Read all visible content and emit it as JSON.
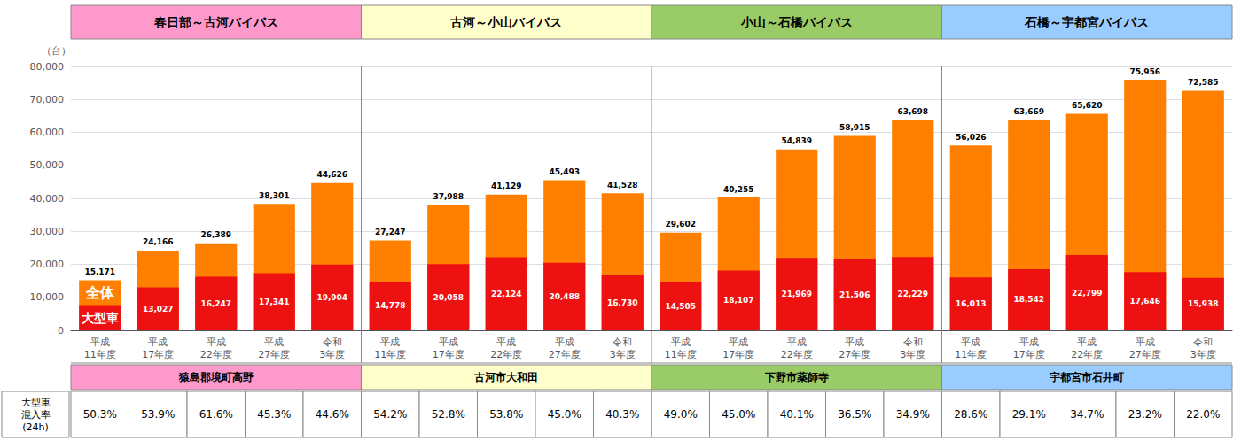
{
  "chart_data": {
    "type": "bar",
    "ylabel": "（台）",
    "categories": [
      "平成\n11年度",
      "平成\n17年度",
      "平成\n22年度",
      "平成\n27年度",
      "令和\n3年度",
      "平成\n11年度",
      "平成\n17年度",
      "平成\n22年度",
      "平成\n27年度",
      "令和\n3年度",
      "平成\n11年度",
      "平成\n17年度",
      "平成\n22年度",
      "平成\n27年度",
      "令和\n3年度",
      "平成\n11年度",
      "平成\n17年度",
      "平成\n22年度",
      "平成\n27年度",
      "令和\n3年度"
    ],
    "series": [
      {
        "name": "全体",
        "color": "#FF8000",
        "values": [
          15171,
          24166,
          26389,
          38301,
          44626,
          27247,
          37988,
          41129,
          45493,
          41528,
          29602,
          40255,
          54839,
          58915,
          63698,
          56026,
          63669,
          65620,
          75956,
          72585
        ],
        "value_labels": [
          "15,171",
          "24,166",
          "26,389",
          "38,301",
          "44,626",
          "27,247",
          "37,988",
          "41,129",
          "45,493",
          "41,528",
          "29,602",
          "40,255",
          "54,839",
          "58,915",
          "63,698",
          "56,026",
          "63,669",
          "65,620",
          "75,956",
          "72,585"
        ]
      },
      {
        "name": "大型車",
        "color": "#EE1111",
        "values": [
          7624,
          13027,
          16247,
          17341,
          19904,
          14778,
          20058,
          22124,
          20488,
          16730,
          14505,
          18107,
          21969,
          21506,
          22229,
          16013,
          18542,
          22799,
          17646,
          15938
        ],
        "value_labels": [
          null,
          "13,027",
          "16,247",
          "17,341",
          "19,904",
          "14,778",
          "20,058",
          "22,124",
          "20,488",
          "16,730",
          "14,505",
          "18,107",
          "21,969",
          "21,506",
          "22,229",
          "16,013",
          "18,542",
          "22,799",
          "17,646",
          "15,938"
        ]
      }
    ],
    "data_labels": true,
    "ylim": [
      0,
      80000
    ],
    "yticks": [
      0,
      {
        "value": 10000,
        "label": "10,000"
      },
      {
        "value": 20000,
        "label": "20,000"
      },
      {
        "value": 30000,
        "label": "30,000"
      },
      {
        "value": 40000,
        "label": "40,000"
      },
      {
        "value": 50000,
        "label": "50,000"
      },
      {
        "value": 60000,
        "label": "60,000"
      },
      {
        "value": 70000,
        "label": "70,000"
      },
      {
        "value": 80000,
        "label": "80,000"
      }
    ],
    "grid": true,
    "sections": [
      {
        "title": "春日部～古河バイパス",
        "color": "#FF99CC",
        "location": "猿島郡境町高野",
        "rates": [
          "50.3%",
          "53.9%",
          "61.6%",
          "45.3%",
          "44.6%"
        ]
      },
      {
        "title": "古河～小山バイパス",
        "color": "#FFFFCC",
        "location": "古河市大和田",
        "rates": [
          "54.2%",
          "52.8%",
          "53.8%",
          "45.0%",
          "40.3%"
        ]
      },
      {
        "title": "小山～石橋バイパス",
        "color": "#99CC66",
        "location": "下野市薬師寺",
        "rates": [
          "49.0%",
          "45.0%",
          "40.1%",
          "36.5%",
          "34.9%"
        ]
      },
      {
        "title": "石橋～宇都宮バイパス",
        "color": "#99CCFF",
        "location": "宇都宮市石井町",
        "rates": [
          "28.6%",
          "29.1%",
          "34.7%",
          "23.2%",
          "22.0%"
        ]
      }
    ],
    "rate_label": "大型車\n混入率\n(24h)"
  }
}
